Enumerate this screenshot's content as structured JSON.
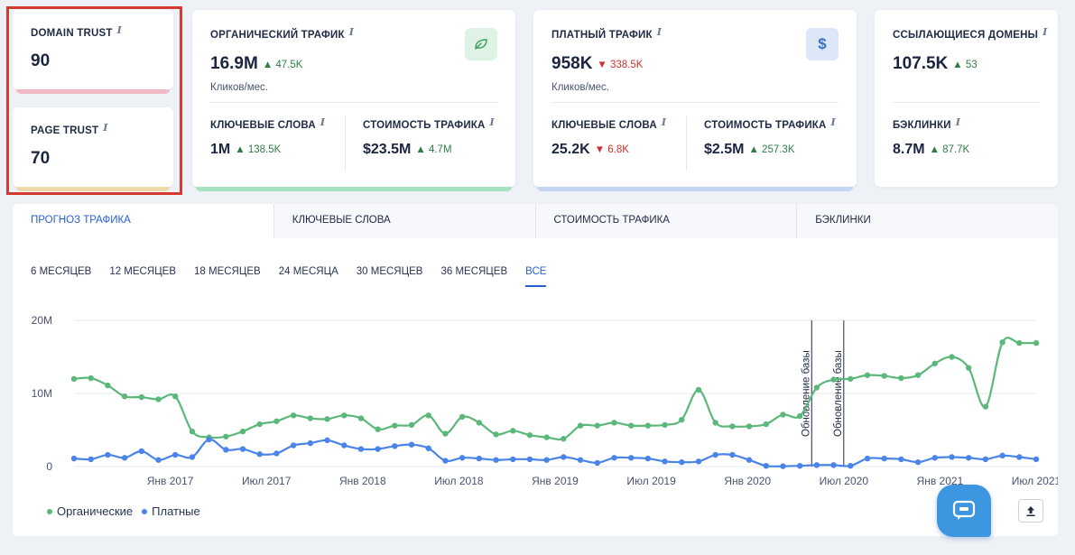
{
  "trust": {
    "domain_label": "DOMAIN TRUST",
    "domain_value": "90",
    "page_label": "PAGE TRUST",
    "page_value": "70",
    "domain_color": "#f2b8c6",
    "page_color": "#f0d9a8"
  },
  "organic": {
    "label": "ОРГАНИЧЕСКИЙ ТРАФИК",
    "value": "16.9M",
    "delta": "47.5K",
    "sub": "Кликов/мес.",
    "kw_label": "КЛЮЧЕВЫЕ СЛОВА",
    "kw_value": "1M",
    "kw_delta": "138.5K",
    "cost_label": "СТОИМОСТЬ ТРАФИКА",
    "cost_value": "$23.5M",
    "cost_delta": "4.7M",
    "icon": "leaf-icon",
    "accent": "#a8e0c0"
  },
  "paid": {
    "label": "ПЛАТНЫЙ ТРАФИК",
    "value": "958K",
    "delta": "338.5K",
    "sub": "Кликов/мес.",
    "kw_label": "КЛЮЧЕВЫЕ СЛОВА",
    "kw_value": "25.2K",
    "kw_delta": "6.8K",
    "cost_label": "СТОИМОСТЬ ТРАФИКА",
    "cost_value": "$2.5M",
    "cost_delta": "257.3K",
    "icon": "dollar-icon",
    "accent": "#c4d6f2"
  },
  "refs": {
    "label": "ССЫЛАЮЩИЕСЯ ДОМЕНЫ",
    "value": "107.5K",
    "delta": "53",
    "bl_label": "БЭКЛИНКИ",
    "bl_value": "8.7M",
    "bl_delta": "87.7K"
  },
  "tabs": [
    "ПРОГНОЗ ТРАФИКА",
    "КЛЮЧЕВЫЕ СЛОВА",
    "СТОИМОСТЬ ТРАФИКА",
    "БЭКЛИНКИ"
  ],
  "periods": [
    "6 МЕСЯЦЕВ",
    "12 МЕСЯЦЕВ",
    "18 МЕСЯЦЕВ",
    "24 МЕСЯЦА",
    "30 МЕСЯЦЕВ",
    "36 МЕСЯЦЕВ",
    "ВСЕ"
  ],
  "legend": {
    "organic": "Органические",
    "paid": "Платные"
  },
  "colors": {
    "organic": "#5cb87a",
    "paid": "#4a84e8",
    "up": "#2e7d46",
    "down": "#d23030"
  },
  "chart_data": {
    "type": "line",
    "y_ticks": [
      "20M",
      "10M",
      "0"
    ],
    "ylim": [
      0,
      20
    ],
    "y_unit": "M",
    "x_ticks": [
      "Янв 2017",
      "Июл 2017",
      "Янв 2018",
      "Июл 2018",
      "Янв 2019",
      "Июл 2019",
      "Янв 2020",
      "Июл 2020",
      "Янв 2021",
      "Июл 2021"
    ],
    "x_range": [
      "2016-07",
      "2021-07"
    ],
    "annotations": [
      {
        "label": "Обновление базы",
        "month": "2020-05"
      },
      {
        "label": "Обновление базы",
        "month": "2020-07"
      }
    ],
    "series": [
      {
        "name": "Органические",
        "values": [
          12,
          12.1,
          11.1,
          9.6,
          9.5,
          9.2,
          9.6,
          4.8,
          4.0,
          4.1,
          4.8,
          5.8,
          6.2,
          7.0,
          6.6,
          6.5,
          7.0,
          6.6,
          5.1,
          5.6,
          5.7,
          7.0,
          4.5,
          6.8,
          6.0,
          4.4,
          4.9,
          4.3,
          4.0,
          3.8,
          5.6,
          5.6,
          6.0,
          5.6,
          5.6,
          5.7,
          6.4,
          10.5,
          6.0,
          5.5,
          5.5,
          5.8,
          7.1,
          6.9,
          10.8,
          11.9,
          12.0,
          12.5,
          12.4,
          12.1,
          12.5,
          14.1,
          15.0,
          13.5,
          8.2,
          17.0,
          16.9,
          16.9
        ]
      },
      {
        "name": "Платные",
        "values": [
          1.1,
          1.0,
          1.6,
          1.2,
          2.1,
          0.9,
          1.6,
          1.3,
          3.7,
          2.3,
          2.4,
          1.7,
          1.8,
          2.9,
          3.2,
          3.6,
          2.9,
          2.4,
          2.4,
          2.8,
          3.0,
          2.5,
          0.8,
          1.2,
          1.1,
          0.9,
          1.0,
          1.0,
          0.9,
          1.3,
          0.9,
          0.5,
          1.2,
          1.2,
          1.1,
          0.7,
          0.6,
          0.7,
          1.6,
          1.6,
          0.9,
          0.1,
          0.05,
          0.1,
          0.2,
          0.2,
          0.1,
          1.1,
          1.1,
          1.0,
          0.6,
          1.2,
          1.3,
          1.2,
          1.0,
          1.5,
          1.3,
          1.0
        ]
      }
    ]
  }
}
